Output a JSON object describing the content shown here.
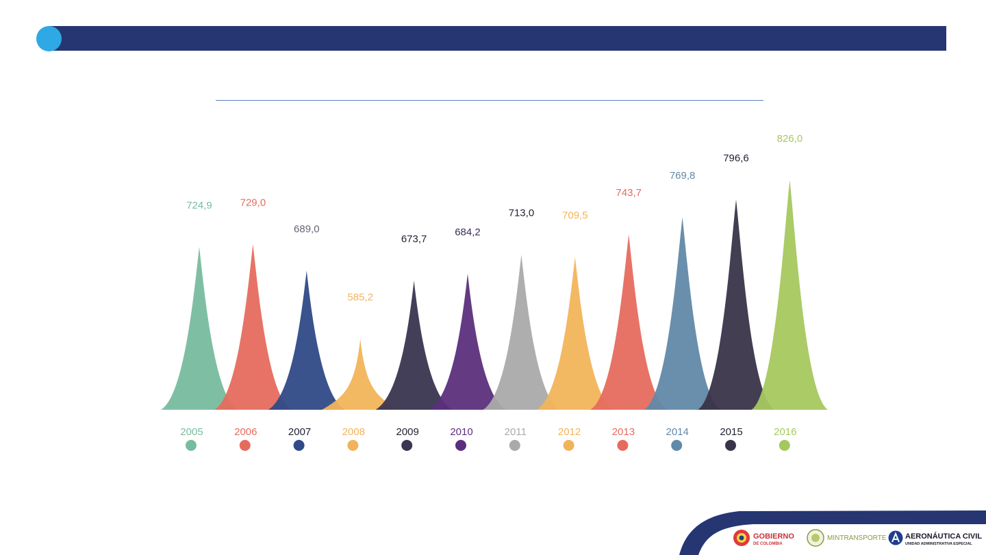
{
  "chart_data": {
    "type": "bar",
    "categories": [
      "2005",
      "2006",
      "2007",
      "2008",
      "2009",
      "2010",
      "2011",
      "2012",
      "2013",
      "2014",
      "2015",
      "2016"
    ],
    "values": [
      724.9,
      729.0,
      689.0,
      585.2,
      673.7,
      684.2,
      713.0,
      709.5,
      743.7,
      769.8,
      796.6,
      826.0
    ],
    "value_labels": [
      "724,9",
      "729,0",
      "689,0",
      "585,2",
      "673,7",
      "684,2",
      "713,0",
      "709,5",
      "743,7",
      "769,8",
      "796,6",
      "826,0"
    ],
    "colors": [
      "#77bc9f",
      "#e66b5e",
      "#2f4a87",
      "#f2b45a",
      "#3a3550",
      "#5c2f7c",
      "#aaaaaa",
      "#f2b45a",
      "#e66b5e",
      "#6189a8",
      "#393449",
      "#a5c85e"
    ],
    "label_colors": [
      "#77bc9f",
      "#e66b5e",
      "#666677",
      "#f2b45a",
      "#222233",
      "#3d2d55",
      "#222233",
      "#f2b45a",
      "#e66b5e",
      "#6189a8",
      "#222233",
      "#a5c85e"
    ],
    "year_colors": [
      "#77bc9f",
      "#e66b5e",
      "#222233",
      "#f2b45a",
      "#222233",
      "#5c2f7c",
      "#aaaaaa",
      "#f2b45a",
      "#e66b5e",
      "#6189a8",
      "#222233",
      "#a5c85e"
    ],
    "legend": "bottom"
  },
  "logos": {
    "gobierno_line1": "GOBIERNO",
    "gobierno_line2": "DE COLOMBIA",
    "mintransporte": "MINTRANSPORTE",
    "aerocivil_line1": "AERONÁUTICA CIVIL",
    "aerocivil_line2": "UNIDAD ADMINISTRATIVA ESPECIAL"
  },
  "colors": {
    "header": "#253672",
    "header_dot": "#2ea9e3"
  }
}
